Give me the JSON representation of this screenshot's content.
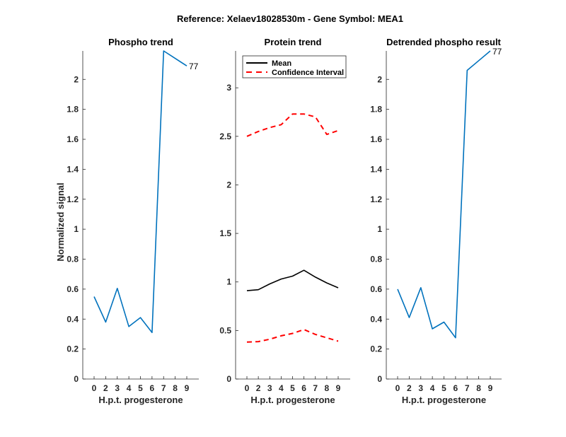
{
  "figure": {
    "suptitle": "Reference:  Xelaev18028530m - Gene Symbol:  MEA1"
  },
  "chart_data": [
    {
      "type": "line",
      "title": "Phospho trend",
      "xlabel": "H.p.t. progesterone",
      "ylabel": "Normalized signal",
      "categories": [
        "0",
        "2",
        "3",
        "4",
        "5",
        "6",
        "7",
        "8",
        "9"
      ],
      "ylim": [
        0,
        2.19
      ],
      "yticks": [
        0,
        0.2,
        0.4,
        0.6,
        0.8,
        1,
        1.2,
        1.4,
        1.6,
        1.8,
        2
      ],
      "ytick_labels": [
        "0",
        "0.2",
        "0.4",
        "0.6",
        "0.8",
        "1",
        "1.2",
        "1.4",
        "1.6",
        "1.8",
        "2"
      ],
      "grid": false,
      "series": [
        {
          "name": "Phospho",
          "color": "#0072BD",
          "style": "solid",
          "values": [
            0.55,
            0.38,
            0.605,
            0.35,
            0.41,
            0.31,
            2.19,
            2.14,
            2.09
          ]
        }
      ],
      "annotations": [
        {
          "text": "77",
          "at_category": "9",
          "series": 0
        }
      ]
    },
    {
      "type": "line",
      "title": "Protein trend",
      "xlabel": "H.p.t. progesterone",
      "ylabel": "",
      "categories": [
        "0",
        "2",
        "3",
        "4",
        "5",
        "6",
        "7",
        "8",
        "9"
      ],
      "ylim": [
        0,
        3.38
      ],
      "yticks": [
        0,
        0.5,
        1,
        1.5,
        2,
        2.5,
        3
      ],
      "ytick_labels": [
        "0",
        "0.5",
        "1",
        "1.5",
        "2",
        "2.5",
        "3"
      ],
      "grid": false,
      "legend": {
        "placement": "top-left",
        "entries": [
          {
            "label": "Mean",
            "color": "#000000",
            "style": "solid"
          },
          {
            "label": "Confidence Interval",
            "color": "#FF0000",
            "style": "dashed"
          }
        ]
      },
      "series": [
        {
          "name": "Mean",
          "color": "#000000",
          "style": "solid",
          "values": [
            0.91,
            0.92,
            0.98,
            1.03,
            1.06,
            1.12,
            1.05,
            0.99,
            0.94
          ]
        },
        {
          "name": "Confidence Interval (upper)",
          "color": "#FF0000",
          "style": "dashed",
          "values": [
            2.5,
            2.55,
            2.59,
            2.62,
            2.73,
            2.73,
            2.7,
            2.52,
            2.56
          ]
        },
        {
          "name": "Confidence Interval (lower)",
          "color": "#FF0000",
          "style": "dashed",
          "values": [
            0.38,
            0.385,
            0.41,
            0.445,
            0.47,
            0.51,
            0.46,
            0.425,
            0.39
          ]
        }
      ]
    },
    {
      "type": "line",
      "title": "Detrended phospho result",
      "xlabel": "H.p.t. progesterone",
      "ylabel": "",
      "categories": [
        "0",
        "2",
        "3",
        "4",
        "5",
        "6",
        "7",
        "8",
        "9"
      ],
      "ylim": [
        0,
        2.19
      ],
      "yticks": [
        0,
        0.2,
        0.4,
        0.6,
        0.8,
        1,
        1.2,
        1.4,
        1.6,
        1.8,
        2
      ],
      "ytick_labels": [
        "0",
        "0.2",
        "0.4",
        "0.6",
        "0.8",
        "1",
        "1.2",
        "1.4",
        "1.6",
        "1.8",
        "2"
      ],
      "grid": false,
      "series": [
        {
          "name": "Detrended phospho",
          "color": "#0072BD",
          "style": "solid",
          "values": [
            0.6,
            0.41,
            0.61,
            0.335,
            0.38,
            0.275,
            2.06,
            2.125,
            2.19
          ]
        }
      ],
      "annotations": [
        {
          "text": "77",
          "at_category": "9",
          "series": 0
        }
      ]
    }
  ]
}
